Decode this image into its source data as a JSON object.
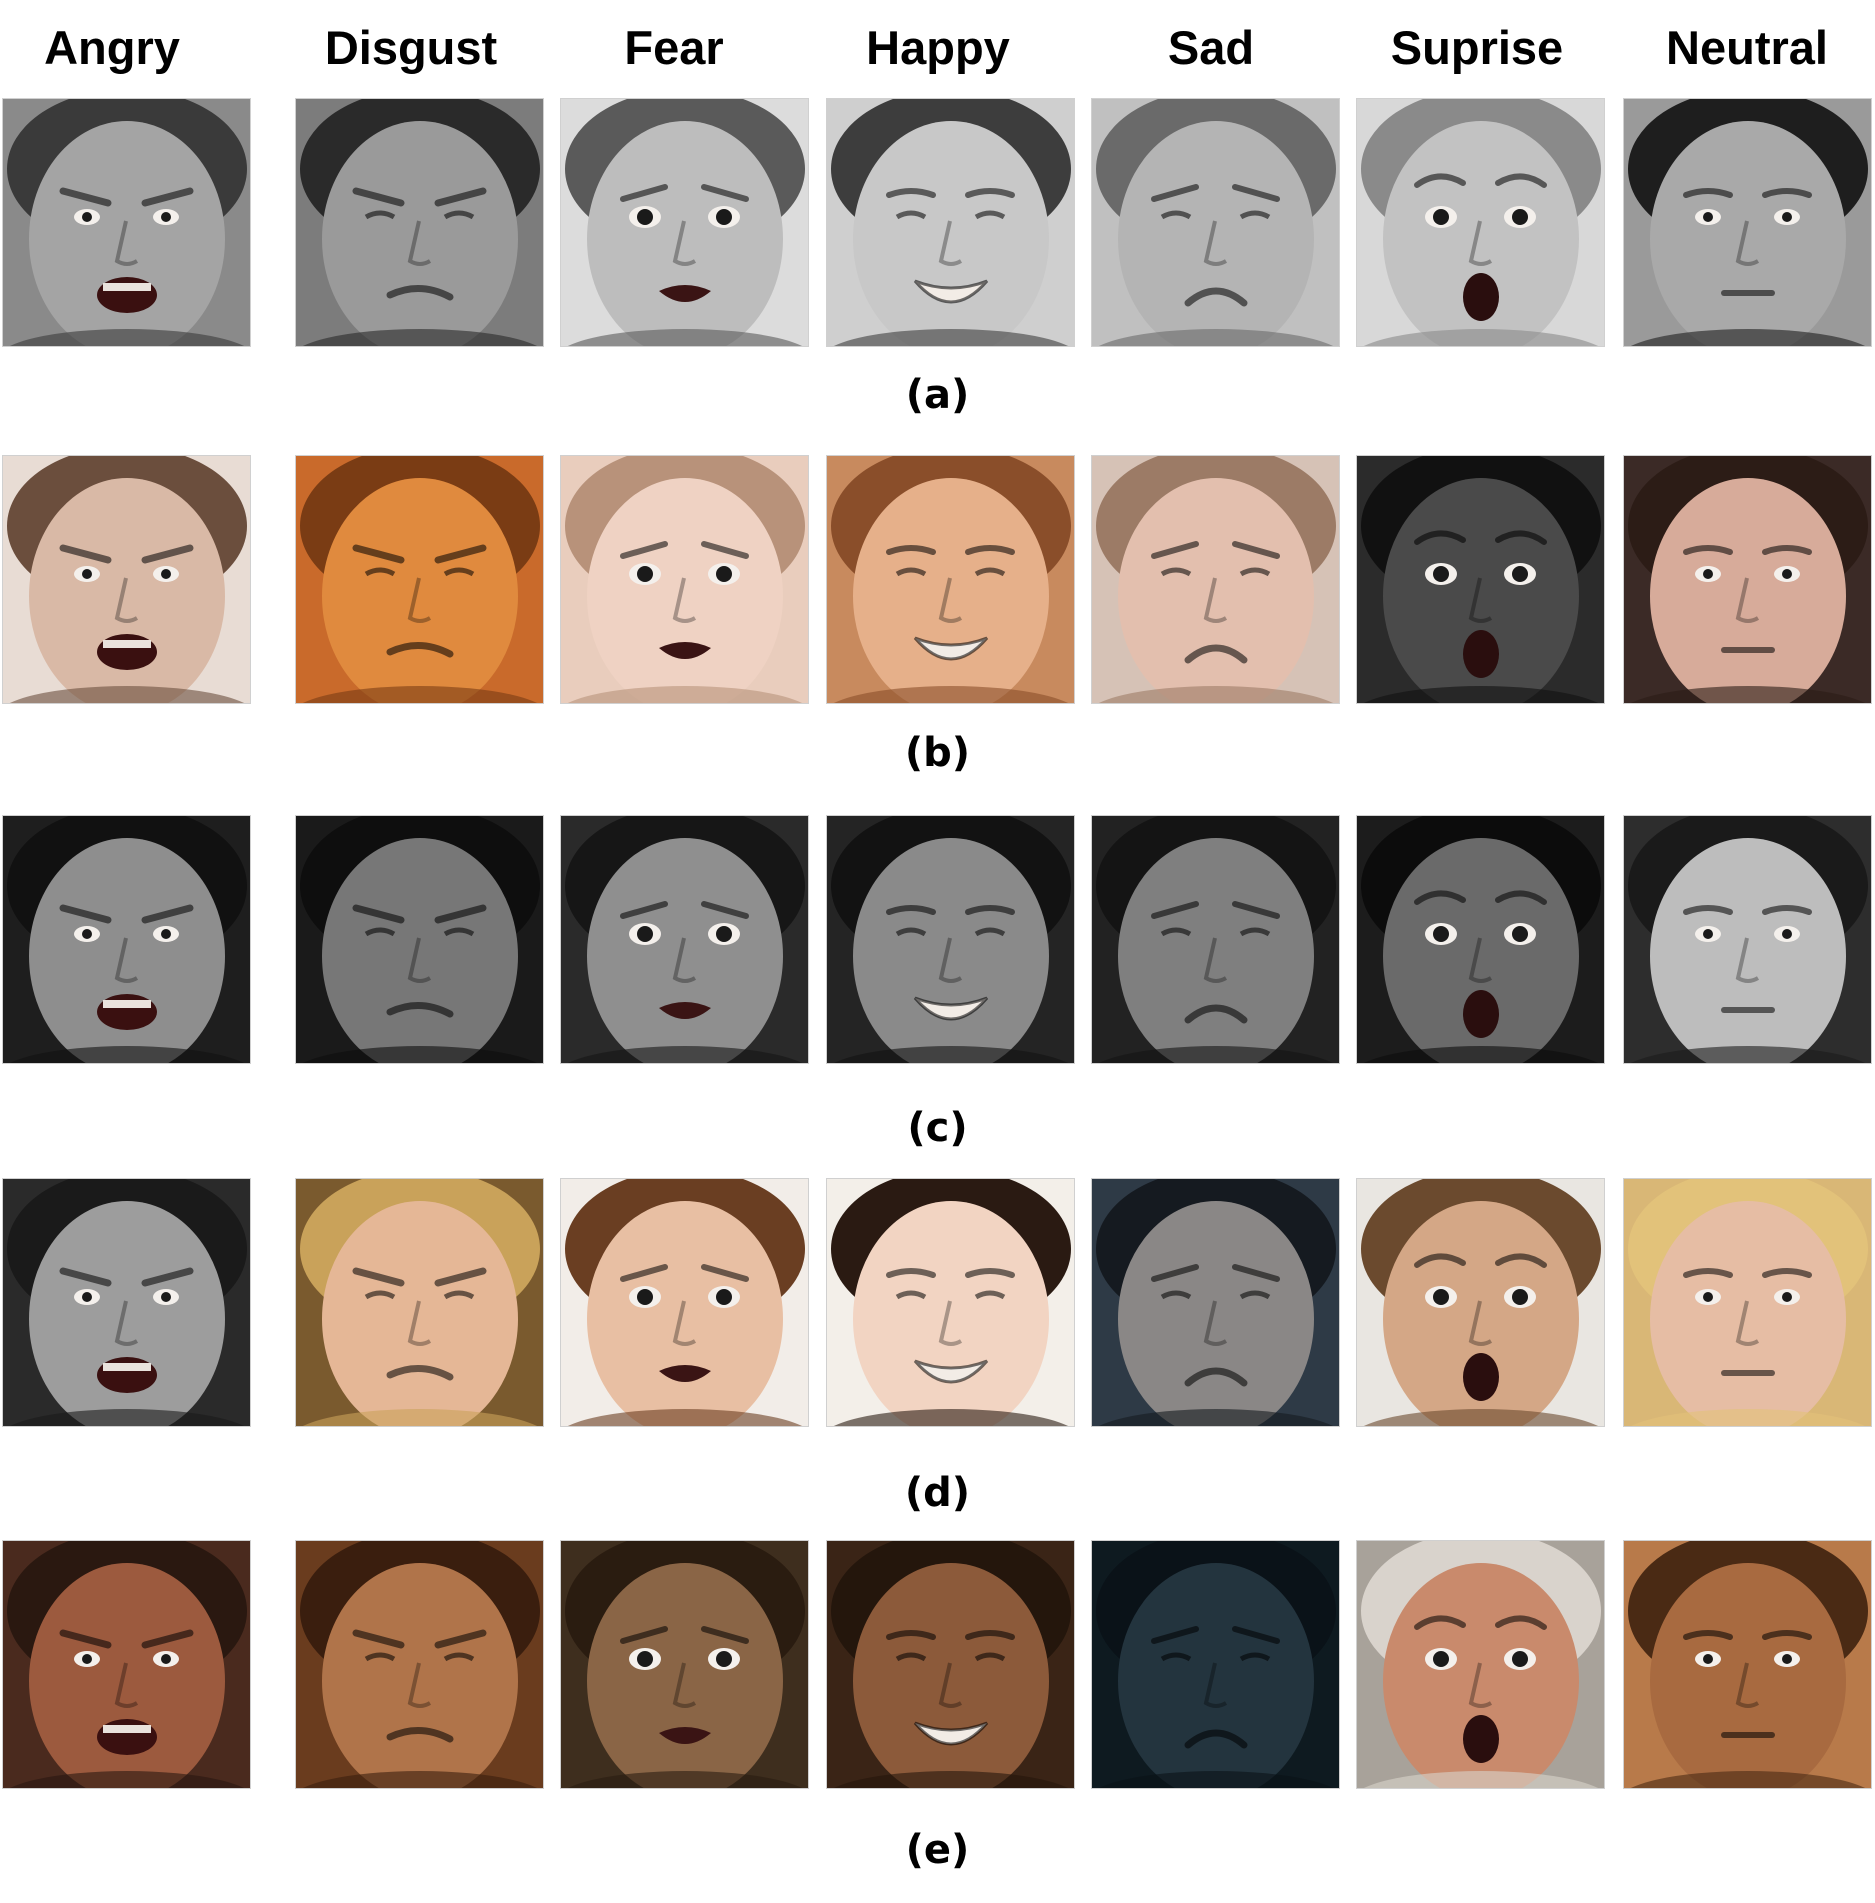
{
  "columns": [
    "Angry",
    "Disgust",
    "Fear",
    "Happy",
    "Sad",
    "Suprise",
    "Neutral"
  ],
  "rows": [
    {
      "label": "(a)",
      "faces": [
        {
          "expression": "angry",
          "bg": "#8a8a8a",
          "skin": "#a4a4a4",
          "hair": "#3a3a3a"
        },
        {
          "expression": "disgust",
          "bg": "#7c7c7c",
          "skin": "#9a9a9a",
          "hair": "#2a2a2a"
        },
        {
          "expression": "fear",
          "bg": "#dcdcdc",
          "skin": "#bdbdbd",
          "hair": "#5a5a5a"
        },
        {
          "expression": "happy",
          "bg": "#cfcfcf",
          "skin": "#c8c8c8",
          "hair": "#3d3d3d"
        },
        {
          "expression": "sad",
          "bg": "#c0c0c0",
          "skin": "#b4b4b4",
          "hair": "#6a6a6a"
        },
        {
          "expression": "surprise",
          "bg": "#d8d8d8",
          "skin": "#c2c2c2",
          "hair": "#8a8a8a"
        },
        {
          "expression": "neutral",
          "bg": "#9a9a9a",
          "skin": "#a9a9a9",
          "hair": "#1e1e1e"
        }
      ]
    },
    {
      "label": "(b)",
      "faces": [
        {
          "expression": "angry",
          "bg": "#e8dcd4",
          "skin": "#d9b9a6",
          "hair": "#6b4e3d"
        },
        {
          "expression": "disgust",
          "bg": "#c96a2b",
          "skin": "#e08a3e",
          "hair": "#7a3c14"
        },
        {
          "expression": "fear",
          "bg": "#e9cdbd",
          "skin": "#efd2c3",
          "hair": "#b8927a"
        },
        {
          "expression": "happy",
          "bg": "#c88a5e",
          "skin": "#e6b08a",
          "hair": "#8a4e2a"
        },
        {
          "expression": "sad",
          "bg": "#d6c2b6",
          "skin": "#e3bfae",
          "hair": "#9c7b66"
        },
        {
          "expression": "surprise",
          "bg": "#2b2b2b",
          "skin": "#4a4a4a",
          "hair": "#111111"
        },
        {
          "expression": "neutral",
          "bg": "#3b2a26",
          "skin": "#d7ab9a",
          "hair": "#2c1c16"
        }
      ]
    },
    {
      "label": "(c)",
      "faces": [
        {
          "expression": "angry",
          "bg": "#1e1e1e",
          "skin": "#8e8e8e",
          "hair": "#111111"
        },
        {
          "expression": "disgust",
          "bg": "#1a1a1a",
          "skin": "#777777",
          "hair": "#0e0e0e"
        },
        {
          "expression": "fear",
          "bg": "#2a2a2a",
          "skin": "#8f8f8f",
          "hair": "#161616"
        },
        {
          "expression": "happy",
          "bg": "#242424",
          "skin": "#8a8a8a",
          "hair": "#121212"
        },
        {
          "expression": "sad",
          "bg": "#222222",
          "skin": "#7f7f7f",
          "hair": "#141414"
        },
        {
          "expression": "surprise",
          "bg": "#1c1c1c",
          "skin": "#6a6a6a",
          "hair": "#0c0c0c"
        },
        {
          "expression": "neutral",
          "bg": "#2d2d2d",
          "skin": "#bdbdbd",
          "hair": "#1a1a1a"
        }
      ]
    },
    {
      "label": "(d)",
      "faces": [
        {
          "expression": "angry",
          "bg": "#2a2a2a",
          "skin": "#9d9d9d",
          "hair": "#1a1a1a"
        },
        {
          "expression": "disgust",
          "bg": "#7a5a2e",
          "skin": "#e5b796",
          "hair": "#c9a25a"
        },
        {
          "expression": "fear",
          "bg": "#f2ede8",
          "skin": "#e8bfa3",
          "hair": "#6a3e22"
        },
        {
          "expression": "happy",
          "bg": "#f3efe9",
          "skin": "#f2d4c2",
          "hair": "#2a1a12"
        },
        {
          "expression": "sad",
          "bg": "#2e3a46",
          "skin": "#8a8786",
          "hair": "#151a20"
        },
        {
          "expression": "surprise",
          "bg": "#e9e6e1",
          "skin": "#d4a786",
          "hair": "#6b4a2e"
        },
        {
          "expression": "neutral",
          "bg": "#d9b776",
          "skin": "#e6bda4",
          "hair": "#e2c27a"
        }
      ]
    },
    {
      "label": "(e)",
      "faces": [
        {
          "expression": "angry",
          "bg": "#4a2a1e",
          "skin": "#9c5a3e",
          "hair": "#2a1810"
        },
        {
          "expression": "disgust",
          "bg": "#6a3c1e",
          "skin": "#b0744a",
          "hair": "#3a1e0e"
        },
        {
          "expression": "fear",
          "bg": "#3e2e1e",
          "skin": "#8a6546",
          "hair": "#2a1c10"
        },
        {
          "expression": "happy",
          "bg": "#3a2416",
          "skin": "#8c5a3a",
          "hair": "#24160c"
        },
        {
          "expression": "sad",
          "bg": "#0e1a20",
          "skin": "#23343e",
          "hair": "#0a1218"
        },
        {
          "expression": "surprise",
          "bg": "#a8a29a",
          "skin": "#c98a6c",
          "hair": "#d9d3cc"
        },
        {
          "expression": "neutral",
          "bg": "#b87a4a",
          "skin": "#a86a40",
          "hair": "#4a2a14"
        }
      ]
    }
  ]
}
